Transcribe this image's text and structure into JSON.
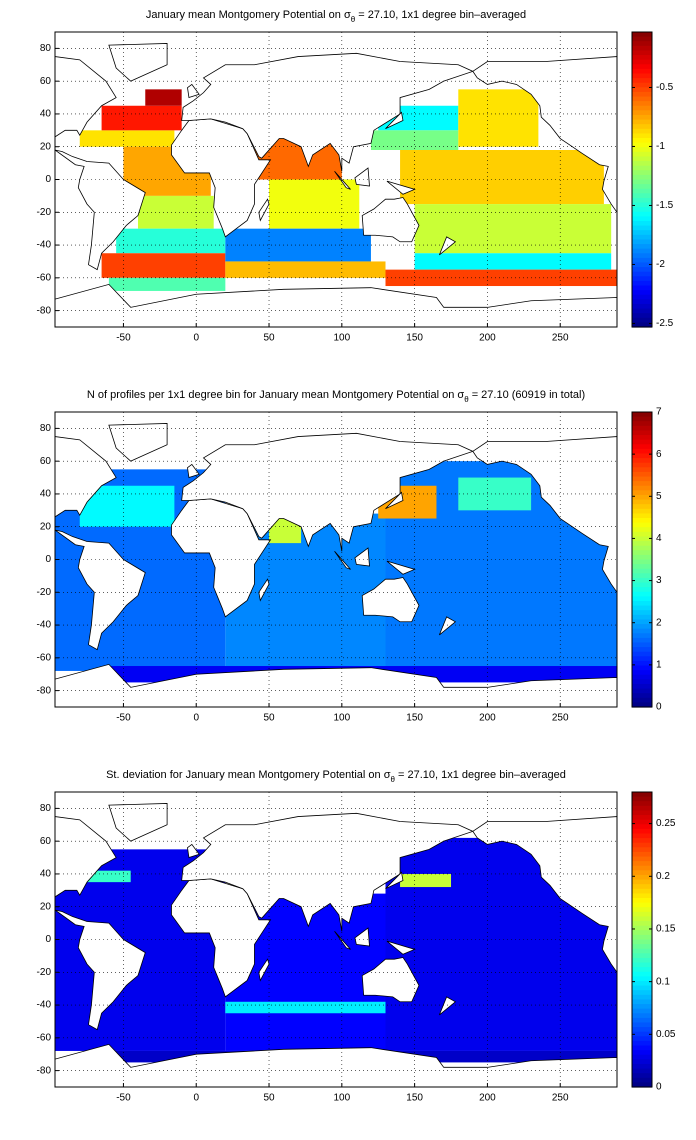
{
  "chart_data": [
    {
      "type": "heatmap",
      "title": {
        "before": "January mean Montgomery Potential on σ",
        "subscript": "θ",
        "after": " = 27.10, 1x1 degree bin–averaged"
      },
      "xlim": [
        -97,
        289
      ],
      "ylim": [
        -90,
        90
      ],
      "xticks": [
        -50,
        0,
        50,
        100,
        150,
        200,
        250
      ],
      "yticks": [
        -80,
        -60,
        -40,
        -20,
        0,
        20,
        40,
        60,
        80
      ],
      "grid": true,
      "colorbar": {
        "lim": [
          -2.53,
          -0.03
        ],
        "ticks": [
          -2.5,
          -2,
          -1.5,
          -1,
          -0.5
        ]
      },
      "patches": [
        {
          "lon": [
            -80,
            -15
          ],
          "lat": [
            20,
            30
          ],
          "value": -0.9
        },
        {
          "lon": [
            -65,
            -10
          ],
          "lat": [
            30,
            45
          ],
          "value": -0.4
        },
        {
          "lon": [
            -35,
            -10
          ],
          "lat": [
            45,
            55
          ],
          "value": -0.15
        },
        {
          "lon": [
            -50,
            10
          ],
          "lat": [
            -10,
            20
          ],
          "value": -0.75
        },
        {
          "lon": [
            -40,
            12
          ],
          "lat": [
            -30,
            -10
          ],
          "value": -1.1
        },
        {
          "lon": [
            -55,
            20
          ],
          "lat": [
            -45,
            -30
          ],
          "value": -1.5
        },
        {
          "lon": [
            -65,
            20
          ],
          "lat": [
            -60,
            -45
          ],
          "value": -0.5
        },
        {
          "lon": [
            -60,
            20
          ],
          "lat": [
            -68,
            -60
          ],
          "value": -1.4
        },
        {
          "lon": [
            40,
            100
          ],
          "lat": [
            0,
            25
          ],
          "value": -0.6
        },
        {
          "lon": [
            50,
            112
          ],
          "lat": [
            -30,
            0
          ],
          "value": -1.0
        },
        {
          "lon": [
            20,
            120
          ],
          "lat": [
            -50,
            -30
          ],
          "value": -1.9
        },
        {
          "lon": [
            20,
            130
          ],
          "lat": [
            -60,
            -50
          ],
          "value": -0.8
        },
        {
          "lon": [
            125,
            180
          ],
          "lat": [
            30,
            45
          ],
          "value": -1.6
        },
        {
          "lon": [
            120,
            180
          ],
          "lat": [
            18,
            30
          ],
          "value": -1.3
        },
        {
          "lon": [
            180,
            235
          ],
          "lat": [
            20,
            55
          ],
          "value": -0.9
        },
        {
          "lon": [
            140,
            280
          ],
          "lat": [
            -15,
            18
          ],
          "value": -0.85
        },
        {
          "lon": [
            150,
            285
          ],
          "lat": [
            -45,
            -15
          ],
          "value": -1.1
        },
        {
          "lon": [
            150,
            285
          ],
          "lat": [
            -55,
            -45
          ],
          "value": -1.6
        },
        {
          "lon": [
            130,
            289
          ],
          "lat": [
            -65,
            -55
          ],
          "value": -0.5
        }
      ]
    },
    {
      "type": "heatmap",
      "title": {
        "before": "N of profiles per 1x1 degree bin for January mean Montgomery Potential on σ",
        "subscript": "θ",
        "after": " = 27.10 (60919 in total)"
      },
      "xlim": [
        -97,
        289
      ],
      "ylim": [
        -90,
        90
      ],
      "xticks": [
        -50,
        0,
        50,
        100,
        150,
        200,
        250
      ],
      "yticks": [
        -80,
        -60,
        -40,
        -20,
        0,
        20,
        40,
        60,
        80
      ],
      "grid": true,
      "colorbar": {
        "lim": [
          0,
          7
        ],
        "ticks": [
          0,
          1,
          2,
          3,
          4,
          5,
          6,
          7
        ]
      },
      "patches": [
        {
          "lon": [
            -97,
            20
          ],
          "lat": [
            -68,
            55
          ],
          "value": 1.6
        },
        {
          "lon": [
            20,
            130
          ],
          "lat": [
            -68,
            28
          ],
          "value": 1.8
        },
        {
          "lon": [
            130,
            289
          ],
          "lat": [
            -68,
            60
          ],
          "value": 1.7
        },
        {
          "lon": [
            -80,
            -15
          ],
          "lat": [
            20,
            45
          ],
          "value": 2.6
        },
        {
          "lon": [
            125,
            165
          ],
          "lat": [
            25,
            45
          ],
          "value": 5
        },
        {
          "lon": [
            50,
            72
          ],
          "lat": [
            10,
            25
          ],
          "value": 4
        },
        {
          "lon": [
            180,
            230
          ],
          "lat": [
            30,
            50
          ],
          "value": 3
        },
        {
          "lon": [
            -60,
            289
          ],
          "lat": [
            -75,
            -65
          ],
          "value": 0.8
        }
      ]
    },
    {
      "type": "heatmap",
      "title": {
        "before": "St. deviation for January mean Montgomery Potential on σ",
        "subscript": "θ",
        "after": " = 27.10, 1x1 degree bin–averaged"
      },
      "xlim": [
        -97,
        289
      ],
      "ylim": [
        -90,
        90
      ],
      "xticks": [
        -50,
        0,
        50,
        100,
        150,
        200,
        250
      ],
      "yticks": [
        -80,
        -60,
        -40,
        -20,
        0,
        20,
        40,
        60,
        80
      ],
      "grid": true,
      "colorbar": {
        "lim": [
          0,
          0.28
        ],
        "ticks": [
          0,
          0.05,
          0.1,
          0.15,
          0.2,
          0.25
        ]
      },
      "patches": [
        {
          "lon": [
            -97,
            20
          ],
          "lat": [
            -68,
            55
          ],
          "value": 0.03
        },
        {
          "lon": [
            20,
            130
          ],
          "lat": [
            -68,
            28
          ],
          "value": 0.035
        },
        {
          "lon": [
            130,
            289
          ],
          "lat": [
            -68,
            62
          ],
          "value": 0.03
        },
        {
          "lon": [
            -75,
            -45
          ],
          "lat": [
            35,
            42
          ],
          "value": 0.12
        },
        {
          "lon": [
            140,
            175
          ],
          "lat": [
            32,
            40
          ],
          "value": 0.16
        },
        {
          "lon": [
            20,
            130
          ],
          "lat": [
            -45,
            -38
          ],
          "value": 0.1
        },
        {
          "lon": [
            -60,
            289
          ],
          "lat": [
            -75,
            -68
          ],
          "value": 0.02
        }
      ]
    }
  ]
}
